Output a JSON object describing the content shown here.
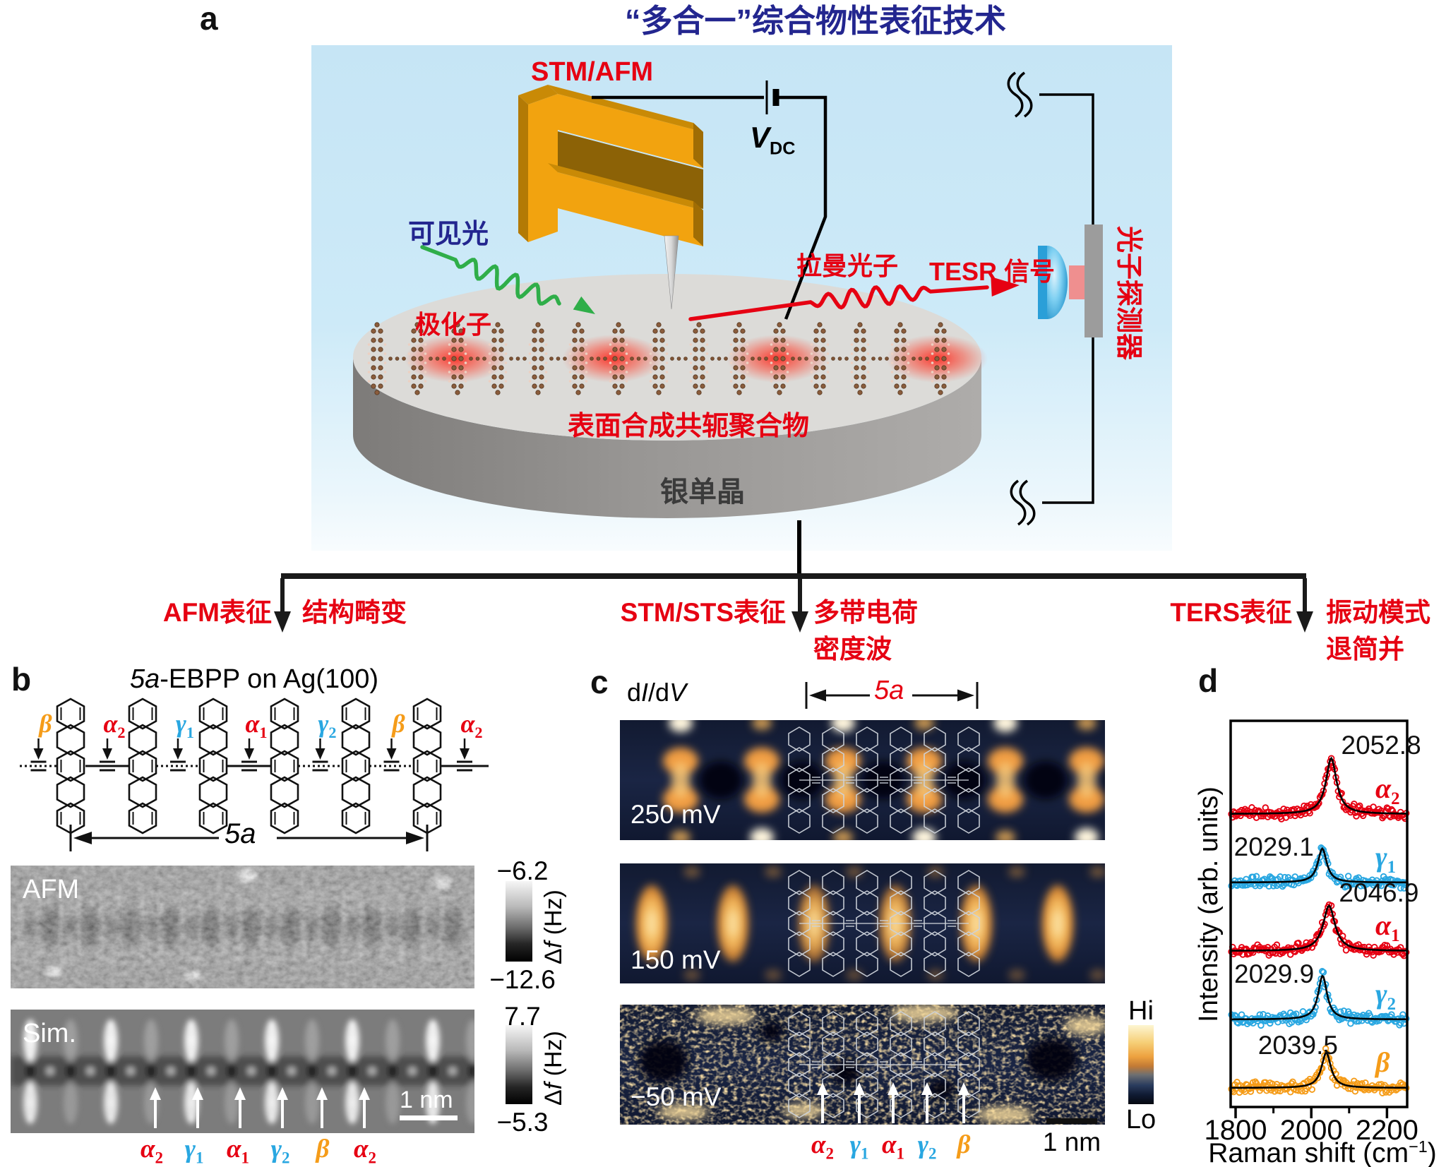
{
  "figure": {
    "panel_a": {
      "tag": "a",
      "title": "“多合一”综合物性表征技术",
      "stm_afm": "STM/AFM",
      "vdc_base": "V",
      "vdc_sub": "DC",
      "visible_light": "可见光",
      "polaron": "极化子",
      "raman_photon": "拉曼光子",
      "tesr_signal": "TESR 信号",
      "photon_detector": "光子探测器",
      "polymer": "表面合成共轭聚合物",
      "crystal": "银单晶",
      "branches": [
        {
          "method": "AFM表征",
          "results": [
            "结构畸变"
          ]
        },
        {
          "method": "STM/STS表征",
          "results": [
            "多带电荷",
            "密度波"
          ]
        },
        {
          "method": "TERS表征",
          "results": [
            "振动模式",
            "退简并"
          ]
        }
      ]
    },
    "panel_b": {
      "tag": "b",
      "title_italic": "5a",
      "title_rest": "-EBPP on Ag(100)",
      "bond_labels": [
        {
          "base": "β",
          "sub": "",
          "color": "#f59c19"
        },
        {
          "base": "α",
          "sub": "2",
          "color": "#e60012"
        },
        {
          "base": "γ",
          "sub": "1",
          "color": "#29a7e1"
        },
        {
          "base": "α",
          "sub": "1",
          "color": "#e60012"
        },
        {
          "base": "γ",
          "sub": "2",
          "color": "#29a7e1"
        },
        {
          "base": "β",
          "sub": "",
          "color": "#f59c19"
        },
        {
          "base": "α",
          "sub": "2",
          "color": "#e60012"
        }
      ],
      "span_label": "5a",
      "afm_tag": "AFM",
      "sim_tag": "Sim.",
      "afm_scale": {
        "top": "−6.2",
        "bottom": "−12.6"
      },
      "sim_scale": {
        "top": "7.7",
        "bottom": "−5.3"
      },
      "scale_unit": {
        "delta": "Δ",
        "f": "f",
        "rest": " (Hz)"
      },
      "scalebar": "1 nm",
      "arrow_labels": [
        {
          "base": "α",
          "sub": "2",
          "color": "#e60012"
        },
        {
          "base": "γ",
          "sub": "1",
          "color": "#29a7e1"
        },
        {
          "base": "α",
          "sub": "1",
          "color": "#e60012"
        },
        {
          "base": "γ",
          "sub": "2",
          "color": "#29a7e1"
        },
        {
          "base": "β",
          "sub": "",
          "color": "#f59c19"
        },
        {
          "base": "α",
          "sub": "2",
          "color": "#e60012"
        }
      ]
    },
    "panel_c": {
      "tag": "c",
      "map_type": {
        "d1": "d",
        "i": "I",
        "d2": "/d",
        "v": "V"
      },
      "span_label": "5a",
      "biases": [
        "250 mV",
        "150 mV",
        "−50 mV"
      ],
      "colorbar_hi": "Hi",
      "colorbar_lo": "Lo",
      "scalebar": "1 nm",
      "arrow_labels": [
        {
          "base": "α",
          "sub": "2",
          "color": "#e60012"
        },
        {
          "base": "γ",
          "sub": "1",
          "color": "#29a7e1"
        },
        {
          "base": "α",
          "sub": "1",
          "color": "#e60012"
        },
        {
          "base": "γ",
          "sub": "2",
          "color": "#29a7e1"
        },
        {
          "base": "β",
          "sub": "",
          "color": "#f59c19"
        }
      ]
    },
    "panel_d": {
      "tag": "d",
      "ylabel": "Intensity (arb. units)",
      "xlabel_pre": "Raman shift (cm",
      "xlabel_sup": "−1",
      "xlabel_post": ")"
    },
    "colors": {
      "accent_red": "#e60012",
      "accent_cyan": "#29a7e1",
      "accent_orange": "#f59c19",
      "title_navy": "#23268f",
      "map_hot": "#f0a43c",
      "map_cold": "#131c36"
    }
  },
  "chart_data": {
    "type": "line",
    "title": "TERS spectra showing lifted degeneracy of vibrational modes",
    "xlabel": "Raman shift (cm⁻¹)",
    "ylabel": "Intensity (arb. units)",
    "xlim": [
      1787,
      2253
    ],
    "xticks": [
      1800,
      2000,
      2200
    ],
    "xminorticks": [
      1900,
      2100
    ],
    "grid": false,
    "fit_model": "lorentzian",
    "fit_color": "#000000",
    "legend_position": "inline-right",
    "series": [
      {
        "name": "alpha2",
        "greek": {
          "base": "α",
          "sub": "2"
        },
        "color": "#e60012",
        "center_cm": 2052.8,
        "center_label": "2052.8",
        "rel_height": 79,
        "fwhm_cm": 34,
        "label_side": "right",
        "stack_index": 0
      },
      {
        "name": "gamma1",
        "greek": {
          "base": "γ",
          "sub": "1"
        },
        "color": "#29a7e1",
        "center_cm": 2029.1,
        "center_label": "2029.1",
        "rel_height": 48,
        "fwhm_cm": 28,
        "label_side": "left",
        "stack_index": 1
      },
      {
        "name": "alpha1",
        "greek": {
          "base": "α",
          "sub": "1"
        },
        "color": "#e60012",
        "center_cm": 2046.9,
        "center_label": "2046.9",
        "rel_height": 64,
        "fwhm_cm": 38,
        "label_side": "right",
        "stack_index": 2
      },
      {
        "name": "gamma2",
        "greek": {
          "base": "γ",
          "sub": "2"
        },
        "color": "#29a7e1",
        "center_cm": 2029.9,
        "center_label": "2029.9",
        "rel_height": 62,
        "fwhm_cm": 28,
        "label_side": "left",
        "stack_index": 3
      },
      {
        "name": "beta",
        "greek": {
          "base": "β",
          "sub": ""
        },
        "color": "#f59c19",
        "center_cm": 2039.5,
        "center_label": "2039.5",
        "rel_height": 50,
        "fwhm_cm": 30,
        "label_side": "above",
        "stack_index": 4
      }
    ]
  }
}
